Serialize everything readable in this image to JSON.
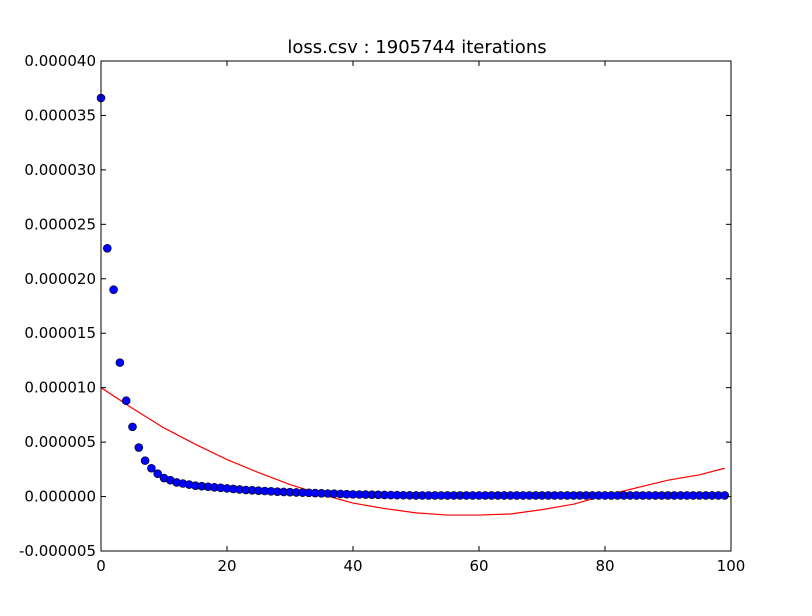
{
  "chart_data": {
    "type": "scatter",
    "title": "loss.csv : 1905744 iterations",
    "xlabel": "",
    "ylabel": "",
    "xlim": [
      0,
      100
    ],
    "ylim": [
      -5e-06,
      4e-05
    ],
    "x_ticks": [
      0,
      20,
      40,
      60,
      80,
      100
    ],
    "x_tick_labels": [
      "0",
      "20",
      "40",
      "60",
      "80",
      "100"
    ],
    "y_ticks": [
      -5e-06,
      0,
      5e-06,
      1e-05,
      1.5e-05,
      2e-05,
      2.5e-05,
      3e-05,
      3.5e-05,
      4e-05
    ],
    "y_tick_labels": [
      "-0.000005",
      "0.000000",
      "0.000005",
      "0.000010",
      "0.000015",
      "0.000020",
      "0.000025",
      "0.000030",
      "0.000035",
      "0.000040"
    ],
    "grid": false,
    "series": [
      {
        "kind": "scatter",
        "color": "#0000ff",
        "x": [
          0,
          1,
          2,
          3,
          4,
          5,
          6,
          7,
          8,
          9,
          10,
          11,
          12,
          13,
          14,
          15,
          16,
          17,
          18,
          19,
          20,
          21,
          22,
          23,
          24,
          25,
          26,
          27,
          28,
          29,
          30,
          31,
          32,
          33,
          34,
          35,
          36,
          37,
          38,
          39,
          40,
          41,
          42,
          43,
          44,
          45,
          46,
          47,
          48,
          49,
          50,
          51,
          52,
          53,
          54,
          55,
          56,
          57,
          58,
          59,
          60,
          61,
          62,
          63,
          64,
          65,
          66,
          67,
          68,
          69,
          70,
          71,
          72,
          73,
          74,
          75,
          76,
          77,
          78,
          79,
          80,
          81,
          82,
          83,
          84,
          85,
          86,
          87,
          88,
          89,
          90,
          91,
          92,
          93,
          94,
          95,
          96,
          97,
          98,
          99
        ],
        "y": [
          3.66e-05,
          2.28e-05,
          1.9e-05,
          1.23e-05,
          8.8e-06,
          6.4e-06,
          4.5e-06,
          3.3e-06,
          2.6e-06,
          2.1e-06,
          1.7e-06,
          1.5e-06,
          1.3e-06,
          1.2e-06,
          1.1e-06,
          1e-06,
          9.5e-07,
          9e-07,
          8.5e-07,
          8e-07,
          7.5e-07,
          7e-07,
          6.5e-07,
          6e-07,
          5.7e-07,
          5.4e-07,
          5.1e-07,
          4.8e-07,
          4.5e-07,
          4.2e-07,
          4e-07,
          3.8e-07,
          3.6e-07,
          3.4e-07,
          3.2e-07,
          3e-07,
          2.8e-07,
          2.6e-07,
          2.4e-07,
          2.2e-07,
          2e-07,
          1.9e-07,
          1.8e-07,
          1.7e-07,
          1.6e-07,
          1.5e-07,
          1.4e-07,
          1.3e-07,
          1.2e-07,
          1.1e-07,
          1e-07,
          1e-07,
          1e-07,
          1e-07,
          1e-07,
          1e-07,
          1e-07,
          1e-07,
          1e-07,
          1e-07,
          1e-07,
          1e-07,
          1e-07,
          1e-07,
          1e-07,
          1e-07,
          1e-07,
          1e-07,
          1e-07,
          1e-07,
          1e-07,
          1e-07,
          1e-07,
          1e-07,
          1e-07,
          1e-07,
          1e-07,
          1e-07,
          1e-07,
          1e-07,
          1e-07,
          1e-07,
          1e-07,
          1e-07,
          1e-07,
          1e-07,
          1e-07,
          1e-07,
          1e-07,
          1e-07,
          1e-07,
          1e-07,
          1e-07,
          1e-07,
          1e-07,
          1e-07,
          1e-07,
          1e-07,
          1e-07,
          1e-07
        ]
      },
      {
        "kind": "line",
        "color": "#ff0000",
        "x": [
          0,
          5,
          10,
          15,
          20,
          25,
          30,
          35,
          40,
          45,
          50,
          55,
          60,
          65,
          70,
          75,
          80,
          85,
          90,
          95,
          99
        ],
        "y": [
          1e-05,
          8.1e-06,
          6.3e-06,
          4.8e-06,
          3.4e-06,
          2.2e-06,
          1.1e-06,
          2e-07,
          -6e-07,
          -1.1e-06,
          -1.5e-06,
          -1.7e-06,
          -1.7e-06,
          -1.6e-06,
          -1.2e-06,
          -7e-07,
          1e-07,
          8e-07,
          1.5e-06,
          2e-06,
          2.6e-06
        ]
      }
    ]
  }
}
